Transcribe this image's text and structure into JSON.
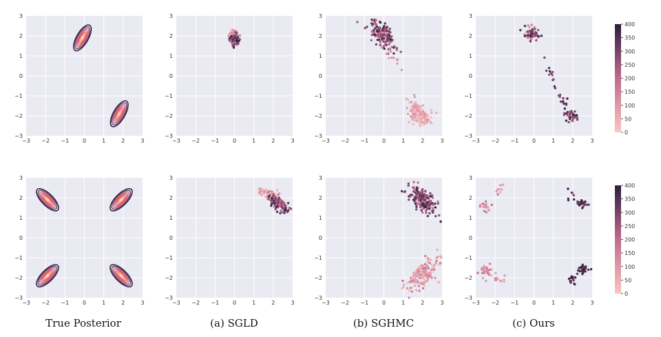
{
  "figure": {
    "captions": [
      "True Posterior",
      "(a) SGLD",
      "(b) SGHMC",
      "(c) Ours"
    ],
    "axis_tick_labels": [
      "−3",
      "−2",
      "−1",
      "0",
      "1",
      "2",
      "3"
    ],
    "colorbar_ticks": [
      "0",
      "50",
      "100",
      "150",
      "200",
      "250",
      "300",
      "350",
      "400"
    ],
    "colors": {
      "plot_background": "#eaeaf2",
      "grid": "#ffffff",
      "contour_dark": "#2d1e3e",
      "contour_light": "#fbe2c5",
      "cmap_low": "#f7c6c1",
      "cmap_mid": "#c46a8f",
      "cmap_high": "#2d1e3e"
    }
  },
  "chart_data": [
    {
      "id": "row1-true",
      "type": "contour",
      "title": "",
      "xlim": [
        -3,
        3
      ],
      "ylim": [
        -3,
        3
      ],
      "modes": [
        {
          "x": -0.1,
          "y": 1.9,
          "angle_deg": -60
        },
        {
          "x": 1.8,
          "y": -1.9,
          "angle_deg": -60
        }
      ]
    },
    {
      "id": "row1-sgld",
      "type": "scatter",
      "xlim": [
        -3,
        3
      ],
      "ylim": [
        -3,
        3
      ],
      "color_range": [
        0,
        400
      ],
      "clusters": [
        {
          "x": -0.05,
          "y": 2.1,
          "sx": 0.12,
          "sy": 0.12,
          "rho": 0,
          "n": 60,
          "iter_range": [
            0,
            150
          ]
        },
        {
          "x": 0.0,
          "y": 1.8,
          "sx": 0.12,
          "sy": 0.15,
          "rho": 0,
          "n": 110,
          "iter_range": [
            150,
            400
          ]
        }
      ]
    },
    {
      "id": "row1-sghmc",
      "type": "scatter",
      "xlim": [
        -3,
        3
      ],
      "ylim": [
        -3,
        3
      ],
      "color_range": [
        0,
        400
      ],
      "clusters": [
        {
          "x": -0.1,
          "y": 2.1,
          "sx": 0.35,
          "sy": 0.35,
          "rho": -0.6,
          "n": 170,
          "iter_range": [
            180,
            400
          ]
        },
        {
          "x": 0.4,
          "y": 0.9,
          "sx": 0.25,
          "sy": 0.3,
          "rho": -0.5,
          "n": 10,
          "iter_range": [
            80,
            180
          ]
        },
        {
          "x": 1.8,
          "y": -1.9,
          "sx": 0.3,
          "sy": 0.3,
          "rho": -0.5,
          "n": 170,
          "iter_range": [
            0,
            120
          ]
        }
      ]
    },
    {
      "id": "row1-ours",
      "type": "scatter",
      "xlim": [
        -3,
        3
      ],
      "ylim": [
        -3,
        3
      ],
      "color_range": [
        0,
        400
      ],
      "clusters": [
        {
          "x": -0.1,
          "y": 2.1,
          "sx": 0.2,
          "sy": 0.15,
          "rho": -0.3,
          "n": 55,
          "iter_range": [
            100,
            400
          ]
        },
        {
          "x": 0.9,
          "y": 0.0,
          "sx": 0.2,
          "sy": 0.5,
          "rho": -0.9,
          "n": 14,
          "iter_range": [
            250,
            400
          ]
        },
        {
          "x": 1.5,
          "y": -1.3,
          "sx": 0.15,
          "sy": 0.2,
          "rho": -0.5,
          "n": 10,
          "iter_range": [
            250,
            400
          ]
        },
        {
          "x": 1.9,
          "y": -2.0,
          "sx": 0.15,
          "sy": 0.15,
          "rho": -0.3,
          "n": 45,
          "iter_range": [
            200,
            400
          ]
        }
      ]
    },
    {
      "id": "row2-true",
      "type": "contour",
      "xlim": [
        -3,
        3
      ],
      "ylim": [
        -3,
        3
      ],
      "modes": [
        {
          "x": -1.9,
          "y": 1.9,
          "angle_deg": 45
        },
        {
          "x": 1.9,
          "y": 1.9,
          "angle_deg": -45
        },
        {
          "x": -1.9,
          "y": -1.9,
          "angle_deg": -45
        },
        {
          "x": 1.9,
          "y": -1.9,
          "angle_deg": 45
        }
      ]
    },
    {
      "id": "row2-sgld",
      "type": "scatter",
      "xlim": [
        -3,
        3
      ],
      "ylim": [
        -3,
        3
      ],
      "color_range": [
        0,
        400
      ],
      "clusters": [
        {
          "x": 1.8,
          "y": 2.2,
          "sx": 0.25,
          "sy": 0.15,
          "rho": -0.5,
          "n": 60,
          "iter_range": [
            0,
            160
          ]
        },
        {
          "x": 2.3,
          "y": 1.7,
          "sx": 0.25,
          "sy": 0.2,
          "rho": -0.6,
          "n": 140,
          "iter_range": [
            160,
            400
          ]
        }
      ]
    },
    {
      "id": "row2-sghmc",
      "type": "scatter",
      "xlim": [
        -3,
        3
      ],
      "ylim": [
        -3,
        3
      ],
      "color_range": [
        0,
        400
      ],
      "clusters": [
        {
          "x": 2.0,
          "y": 1.9,
          "sx": 0.4,
          "sy": 0.35,
          "rho": -0.5,
          "n": 170,
          "iter_range": [
            180,
            400
          ]
        },
        {
          "x": 2.0,
          "y": -1.8,
          "sx": 0.4,
          "sy": 0.4,
          "rho": 0.6,
          "n": 170,
          "iter_range": [
            0,
            180
          ]
        }
      ]
    },
    {
      "id": "row2-ours",
      "type": "scatter",
      "xlim": [
        -3,
        3
      ],
      "ylim": [
        -3,
        3
      ],
      "color_range": [
        0,
        400
      ],
      "clusters": [
        {
          "x": -2.5,
          "y": 1.6,
          "sx": 0.12,
          "sy": 0.15,
          "rho": 0,
          "n": 20,
          "iter_range": [
            80,
            200
          ]
        },
        {
          "x": -1.8,
          "y": 2.3,
          "sx": 0.15,
          "sy": 0.2,
          "rho": 0.5,
          "n": 10,
          "iter_range": [
            50,
            150
          ]
        },
        {
          "x": 2.1,
          "y": 2.0,
          "sx": 0.3,
          "sy": 0.2,
          "rho": -0.6,
          "n": 10,
          "iter_range": [
            300,
            400
          ]
        },
        {
          "x": 2.5,
          "y": 1.7,
          "sx": 0.12,
          "sy": 0.1,
          "rho": 0,
          "n": 25,
          "iter_range": [
            300,
            400
          ]
        },
        {
          "x": -2.5,
          "y": -1.6,
          "sx": 0.15,
          "sy": 0.12,
          "rho": 0,
          "n": 30,
          "iter_range": [
            80,
            200
          ]
        },
        {
          "x": -2.0,
          "y": -2.0,
          "sx": 0.3,
          "sy": 0.15,
          "rho": -0.5,
          "n": 20,
          "iter_range": [
            30,
            150
          ]
        },
        {
          "x": 2.5,
          "y": -1.6,
          "sx": 0.12,
          "sy": 0.12,
          "rho": 0,
          "n": 35,
          "iter_range": [
            330,
            400
          ]
        },
        {
          "x": 2.0,
          "y": -2.1,
          "sx": 0.1,
          "sy": 0.1,
          "rho": 0,
          "n": 15,
          "iter_range": [
            300,
            400
          ]
        }
      ]
    }
  ]
}
